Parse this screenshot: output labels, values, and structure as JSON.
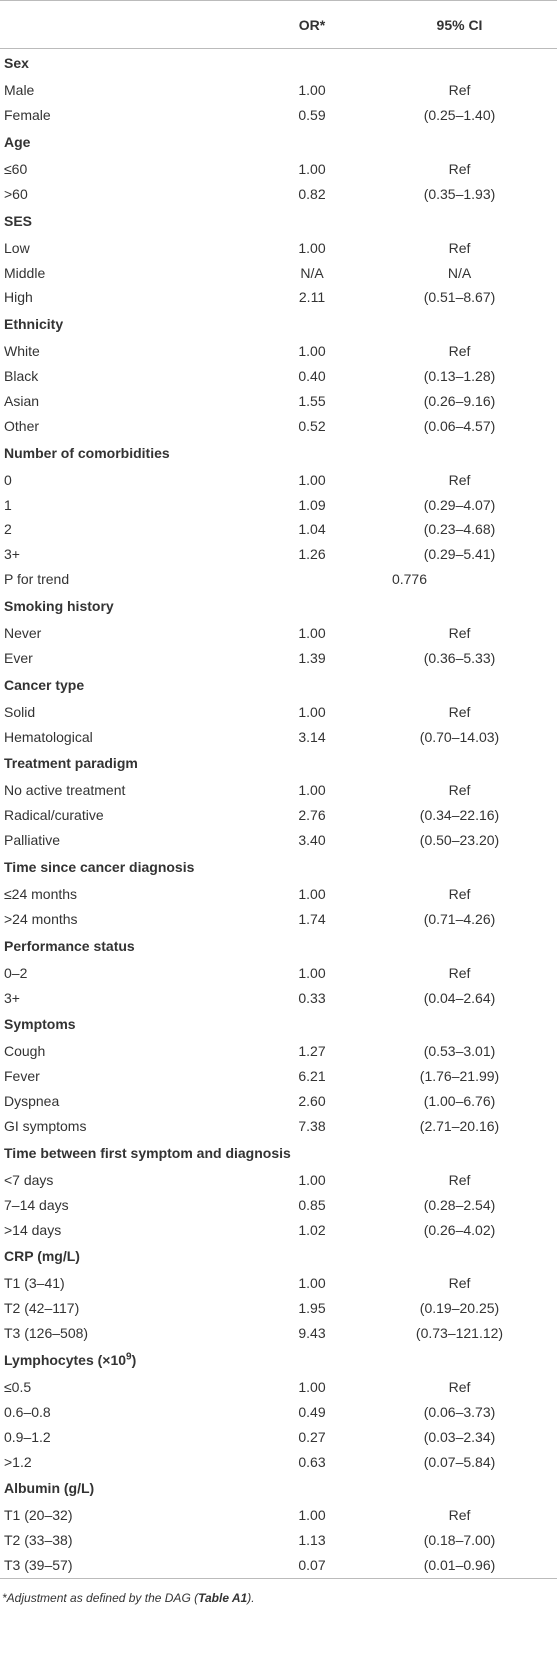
{
  "table": {
    "header": [
      "OR*",
      "95% CI"
    ],
    "rows": [
      {
        "section": "Sex"
      },
      {
        "cells": [
          "Male",
          "1.00",
          "Ref"
        ]
      },
      {
        "cells": [
          "Female",
          "0.59",
          "(0.25–1.40)"
        ]
      },
      {
        "section": "Age"
      },
      {
        "cells": [
          "≤60",
          "1.00",
          "Ref"
        ]
      },
      {
        "cells": [
          ">60",
          "0.82",
          "(0.35–1.93)"
        ]
      },
      {
        "section": "SES"
      },
      {
        "cells": [
          "Low",
          "1.00",
          "Ref"
        ]
      },
      {
        "cells": [
          "Middle",
          "N/A",
          "N/A"
        ]
      },
      {
        "cells": [
          "High",
          "2.11",
          "(0.51–8.67)"
        ]
      },
      {
        "section": "Ethnicity"
      },
      {
        "cells": [
          "White",
          "1.00",
          "Ref"
        ]
      },
      {
        "cells": [
          "Black",
          "0.40",
          "(0.13–1.28)"
        ]
      },
      {
        "cells": [
          "Asian",
          "1.55",
          "(0.26–9.16)"
        ]
      },
      {
        "cells": [
          "Other",
          "0.52",
          "(0.06–4.57)"
        ]
      },
      {
        "section": "Number of comorbidities"
      },
      {
        "cells": [
          "0",
          "1.00",
          "Ref"
        ]
      },
      {
        "cells": [
          "1",
          "1.09",
          "(0.29–4.07)"
        ]
      },
      {
        "cells": [
          "2",
          "1.04",
          "(0.23–4.68)"
        ]
      },
      {
        "cells": [
          "3+",
          "1.26",
          "(0.29–5.41)"
        ]
      },
      {
        "span": [
          "P for trend",
          "0.776"
        ]
      },
      {
        "section": "Smoking history"
      },
      {
        "cells": [
          "Never",
          "1.00",
          "Ref"
        ]
      },
      {
        "cells": [
          "Ever",
          "1.39",
          "(0.36–5.33)"
        ]
      },
      {
        "section": "Cancer type"
      },
      {
        "cells": [
          "Solid",
          "1.00",
          "Ref"
        ]
      },
      {
        "cells": [
          "Hematological",
          "3.14",
          "(0.70–14.03)"
        ]
      },
      {
        "section": "Treatment paradigm"
      },
      {
        "cells": [
          "No active treatment",
          "1.00",
          "Ref"
        ]
      },
      {
        "cells": [
          "Radical/curative",
          "2.76",
          "(0.34–22.16)"
        ]
      },
      {
        "cells": [
          "Palliative",
          "3.40",
          "(0.50–23.20)"
        ]
      },
      {
        "section": "Time since cancer diagnosis"
      },
      {
        "cells": [
          "≤24 months",
          "1.00",
          "Ref"
        ]
      },
      {
        "cells": [
          ">24 months",
          "1.74",
          "(0.71–4.26)"
        ]
      },
      {
        "section": "Performance status"
      },
      {
        "cells": [
          "0–2",
          "1.00",
          "Ref"
        ]
      },
      {
        "cells": [
          "3+",
          "0.33",
          "(0.04–2.64)"
        ]
      },
      {
        "section": "Symptoms"
      },
      {
        "cells": [
          "Cough",
          "1.27",
          "(0.53–3.01)"
        ]
      },
      {
        "cells": [
          "Fever",
          "6.21",
          "(1.76–21.99)"
        ]
      },
      {
        "cells": [
          "Dyspnea",
          "2.60",
          "(1.00–6.76)"
        ]
      },
      {
        "cells": [
          "GI symptoms",
          "7.38",
          "(2.71–20.16)"
        ]
      },
      {
        "section": "Time between first symptom and diagnosis"
      },
      {
        "cells": [
          "<7 days",
          "1.00",
          "Ref"
        ]
      },
      {
        "cells": [
          "7–14 days",
          "0.85",
          "(0.28–2.54)"
        ]
      },
      {
        "cells": [
          ">14 days",
          "1.02",
          "(0.26–4.02)"
        ]
      },
      {
        "section": "CRP (mg/L)"
      },
      {
        "cells": [
          "T1 (3–41)",
          "1.00",
          "Ref"
        ]
      },
      {
        "cells": [
          "T2 (42–117)",
          "1.95",
          "(0.19–20.25)"
        ]
      },
      {
        "cells": [
          "T3 (126–508)",
          "9.43",
          "(0.73–121.12)"
        ]
      },
      {
        "section": "Lymphocytes (×10",
        "sup": "9",
        "suffix": ")"
      },
      {
        "cells": [
          "≤0.5",
          "1.00",
          "Ref"
        ]
      },
      {
        "cells": [
          "0.6–0.8",
          "0.49",
          "(0.06–3.73)"
        ]
      },
      {
        "cells": [
          "0.9–1.2",
          "0.27",
          "(0.03–2.34)"
        ]
      },
      {
        "cells": [
          ">1.2",
          "0.63",
          "(0.07–5.84)"
        ]
      },
      {
        "section": "Albumin (g/L)"
      },
      {
        "cells": [
          "T1 (20–32)",
          "1.00",
          "Ref"
        ]
      },
      {
        "cells": [
          "T2 (33–38)",
          "1.13",
          "(0.18–7.00)"
        ]
      },
      {
        "cells": [
          "T3 (39–57)",
          "0.07",
          "(0.01–0.96)"
        ]
      }
    ]
  },
  "footnote": [
    "*Adjustment as defined by the DAG (",
    "Table A1",
    ")."
  ]
}
